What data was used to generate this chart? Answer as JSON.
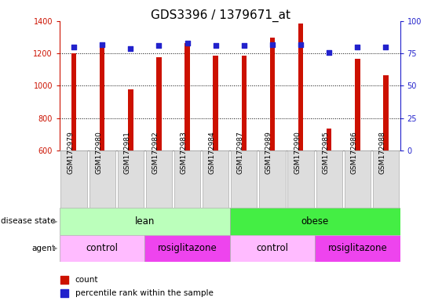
{
  "title": "GDS3396 / 1379671_at",
  "samples": [
    "GSM172979",
    "GSM172980",
    "GSM172981",
    "GSM172982",
    "GSM172983",
    "GSM172984",
    "GSM172987",
    "GSM172989",
    "GSM172990",
    "GSM172985",
    "GSM172986",
    "GSM172988"
  ],
  "counts": [
    1200,
    1248,
    978,
    1178,
    1262,
    1188,
    1188,
    1298,
    1385,
    735,
    1165,
    1065
  ],
  "percentiles": [
    80,
    82,
    79,
    81,
    83,
    81,
    81,
    82,
    82,
    76,
    80,
    80
  ],
  "ylim_left": [
    600,
    1400
  ],
  "ylim_right": [
    0,
    100
  ],
  "yticks_left": [
    600,
    800,
    1000,
    1200,
    1400
  ],
  "yticks_right": [
    0,
    25,
    50,
    75,
    100
  ],
  "bar_color": "#cc1100",
  "dot_color": "#2222cc",
  "bar_width": 0.18,
  "disease_state_groups": [
    {
      "label": "lean",
      "start": 0,
      "end": 6,
      "color": "#bbffbb"
    },
    {
      "label": "obese",
      "start": 6,
      "end": 12,
      "color": "#44ee44"
    }
  ],
  "agent_groups": [
    {
      "label": "control",
      "start": 0,
      "end": 3,
      "color": "#ffbbff"
    },
    {
      "label": "rosiglitazone",
      "start": 3,
      "end": 6,
      "color": "#ee44ee"
    },
    {
      "label": "control",
      "start": 6,
      "end": 9,
      "color": "#ffbbff"
    },
    {
      "label": "rosiglitazone",
      "start": 9,
      "end": 12,
      "color": "#ee44ee"
    }
  ],
  "bg_color": "#ffffff",
  "grid_lines": [
    800,
    1000,
    1200
  ],
  "label_fontsize": 8,
  "tick_fontsize": 7,
  "annot_fontsize": 8.5,
  "title_fontsize": 11
}
